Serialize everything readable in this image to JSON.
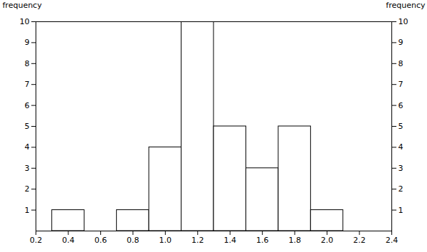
{
  "chart_data": {
    "type": "histogram",
    "bins": [
      0.3,
      0.5,
      0.7,
      0.9,
      1.1,
      1.3,
      1.5,
      1.7,
      1.9,
      2.1,
      2.3
    ],
    "values": [
      1,
      0,
      1,
      4,
      10,
      5,
      3,
      5,
      1,
      0
    ],
    "color": "#ffffff",
    "xlim": [
      0.2,
      2.4
    ],
    "xticks": [
      0.2,
      0.4,
      0.6,
      0.8,
      {
        "value": 1,
        "label": "1.0"
      },
      1.2,
      1.4,
      1.6,
      1.8,
      {
        "value": 2,
        "label": "2.0"
      },
      2.2,
      2.4
    ],
    "ylim": [
      0,
      10
    ],
    "yticks": [
      1,
      2,
      3,
      4,
      5,
      6,
      7,
      8,
      9,
      10
    ],
    "ylabel": "frequency",
    "y2lim": [
      0,
      10
    ],
    "y2ticks": [
      1,
      2,
      3,
      4,
      5,
      6,
      7,
      8,
      9,
      10
    ],
    "y2label": "frequency"
  }
}
